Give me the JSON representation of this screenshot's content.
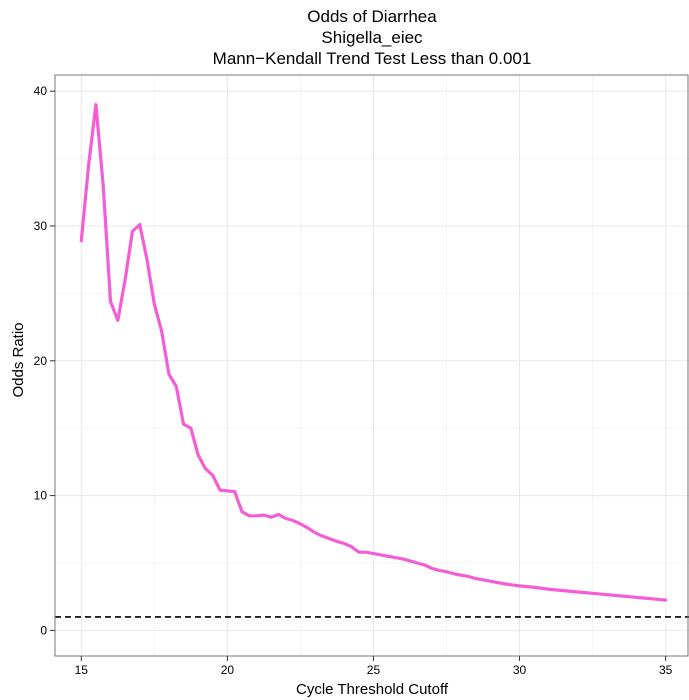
{
  "chart_data": {
    "type": "line",
    "title_lines": [
      "Odds of Diarrhea",
      "Shigella_eiec",
      "Mann−Kendall Trend Test Less than 0.001"
    ],
    "xlabel": "Cycle Threshold Cutoff",
    "ylabel": "Odds Ratio",
    "xlim": [
      14.1,
      35.8
    ],
    "ylim": [
      -1.9,
      41.2
    ],
    "x_ticks": [
      15,
      20,
      25,
      30,
      35
    ],
    "y_ticks": [
      0,
      10,
      20,
      30,
      40
    ],
    "x_tick_labels": [
      "15",
      "20",
      "25",
      "30",
      "35"
    ],
    "y_tick_labels": [
      "0",
      "10",
      "20",
      "30",
      "40"
    ],
    "grid": true,
    "reference_line": {
      "y": 1,
      "style": "dashed",
      "color": "#000000"
    },
    "series": [
      {
        "color": "#f45ed4",
        "x": [
          15.0,
          15.25,
          15.5,
          15.75,
          16.0,
          16.25,
          16.5,
          16.75,
          17.0,
          17.25,
          17.5,
          17.75,
          18.0,
          18.25,
          18.5,
          18.75,
          19.0,
          19.25,
          19.5,
          19.75,
          20.0,
          20.25,
          20.5,
          20.75,
          21.0,
          21.25,
          21.5,
          21.75,
          22.0,
          22.25,
          22.5,
          22.75,
          23.0,
          23.25,
          23.5,
          23.75,
          24.0,
          24.25,
          24.5,
          24.75,
          25.0,
          25.25,
          25.5,
          25.75,
          26.0,
          26.25,
          26.5,
          26.75,
          27.0,
          27.25,
          27.5,
          27.75,
          28.0,
          28.25,
          28.5,
          28.75,
          29.0,
          29.5,
          30.0,
          30.5,
          31.0,
          31.5,
          32.0,
          32.5,
          33.0,
          33.5,
          34.0,
          34.5,
          35.0
        ],
        "y": [
          28.9,
          34.5,
          39.0,
          33.0,
          24.4,
          23.0,
          26.0,
          29.6,
          30.1,
          27.5,
          24.2,
          22.2,
          19.0,
          18.1,
          15.3,
          15.0,
          13.0,
          12.0,
          11.5,
          10.4,
          10.35,
          10.3,
          8.8,
          8.5,
          8.5,
          8.55,
          8.4,
          8.6,
          8.3,
          8.15,
          7.9,
          7.6,
          7.25,
          7.0,
          6.8,
          6.6,
          6.45,
          6.2,
          5.8,
          5.8,
          5.7,
          5.6,
          5.5,
          5.4,
          5.3,
          5.15,
          5.0,
          4.85,
          4.6,
          4.45,
          4.35,
          4.2,
          4.1,
          4.0,
          3.85,
          3.75,
          3.65,
          3.45,
          3.3,
          3.2,
          3.05,
          2.95,
          2.85,
          2.75,
          2.65,
          2.55,
          2.45,
          2.35,
          2.25
        ]
      }
    ]
  },
  "colors": {
    "line": "#f45ed4",
    "grid_major": "#e8e8e8",
    "grid_minor": "#f4f4f4",
    "panel_border": "#777777",
    "reference_line": "#000000"
  }
}
